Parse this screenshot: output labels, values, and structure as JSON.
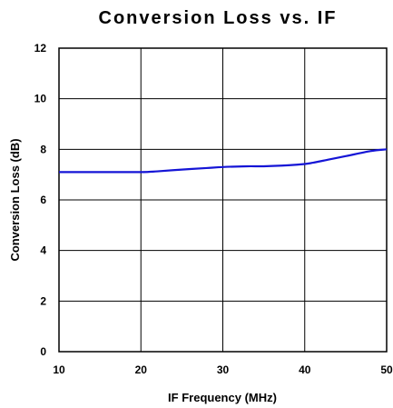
{
  "chart_data": {
    "type": "line",
    "title": "Conversion Loss vs. IF",
    "xlabel": "IF Frequency (MHz)",
    "ylabel": "Conversion Loss (dB)",
    "xlim": [
      10,
      50
    ],
    "ylim": [
      0,
      12
    ],
    "xticks": [
      10,
      20,
      30,
      40,
      50
    ],
    "yticks": [
      0,
      2,
      4,
      6,
      8,
      10,
      12
    ],
    "grid": true,
    "colors": {
      "series": "#1515d6",
      "grid": "#000000"
    },
    "series": [
      {
        "x": [
          10,
          15,
          20,
          22,
          25,
          28,
          30,
          33,
          35,
          38,
          40,
          41,
          43,
          45,
          48,
          50
        ],
        "y": [
          7.1,
          7.1,
          7.1,
          7.13,
          7.2,
          7.26,
          7.3,
          7.33,
          7.33,
          7.37,
          7.42,
          7.47,
          7.6,
          7.73,
          7.93,
          8.0
        ]
      }
    ]
  }
}
